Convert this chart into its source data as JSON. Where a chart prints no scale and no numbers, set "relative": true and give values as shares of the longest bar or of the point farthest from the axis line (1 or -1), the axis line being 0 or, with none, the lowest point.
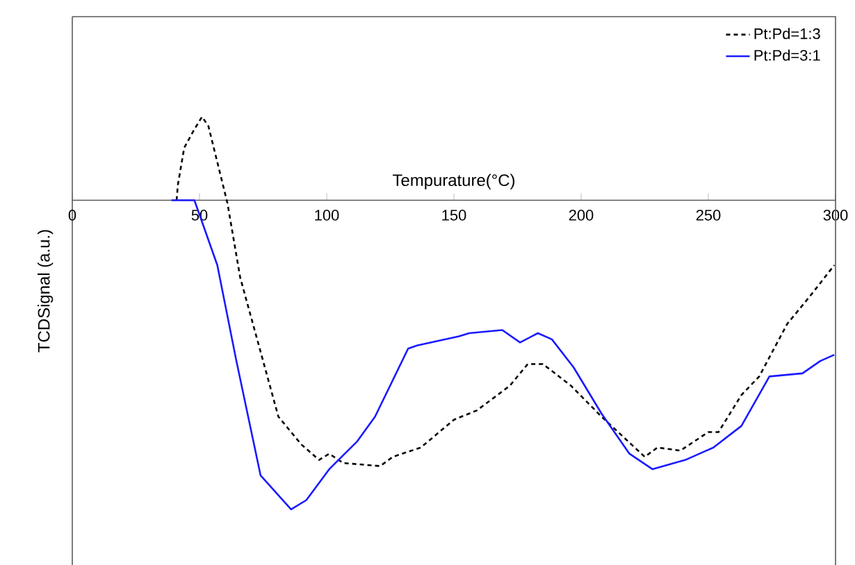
{
  "chart_data": {
    "type": "line",
    "relative": true,
    "xlabel": "Tempurature(°C)",
    "ylabel": "TCDSignal (a.u.)",
    "xlim": [
      0,
      300
    ],
    "xticks": [
      0,
      50,
      100,
      150,
      200,
      250,
      300
    ],
    "legend": "top right",
    "series": [
      {
        "name": "Pt:Pd=1:3",
        "color": "#000000",
        "line_style": "dashed",
        "x": [
          41,
          41.5,
          44,
          48,
          51,
          53.5,
          61,
          66,
          74,
          81,
          90,
          97,
          101,
          106.5,
          121,
          126,
          137,
          150,
          159,
          172,
          179,
          185,
          196,
          208,
          225,
          230,
          239,
          250,
          254,
          263,
          270,
          281,
          290,
          299.5
        ],
        "values": [
          0,
          0.05,
          0.17,
          0.23,
          0.27,
          0.24,
          -0.01,
          -0.25,
          -0.49,
          -0.7,
          -0.79,
          -0.84,
          -0.82,
          -0.85,
          -0.86,
          -0.83,
          -0.8,
          -0.71,
          -0.68,
          -0.6,
          -0.53,
          -0.53,
          -0.6,
          -0.7,
          -0.83,
          -0.8,
          -0.81,
          -0.75,
          -0.75,
          -0.63,
          -0.57,
          -0.4,
          -0.31,
          -0.21
        ]
      },
      {
        "name": "Pt:Pd=3:1",
        "color": "#1a1aff",
        "line_style": "solid",
        "x": [
          39,
          48,
          57,
          64.5,
          74,
          86,
          92,
          101,
          112,
          119,
          132,
          135.5,
          152,
          156,
          169,
          176,
          183,
          188.5,
          197,
          208,
          219,
          228,
          241,
          252,
          263,
          274,
          287,
          294,
          299.5
        ],
        "values": [
          0,
          0,
          -0.21,
          -0.52,
          -0.89,
          -1,
          -0.97,
          -0.87,
          -0.78,
          -0.7,
          -0.48,
          -0.47,
          -0.44,
          -0.43,
          -0.42,
          -0.46,
          -0.43,
          -0.45,
          -0.54,
          -0.69,
          -0.82,
          -0.87,
          -0.84,
          -0.8,
          -0.73,
          -0.57,
          -0.56,
          -0.52,
          -0.5
        ]
      }
    ]
  }
}
